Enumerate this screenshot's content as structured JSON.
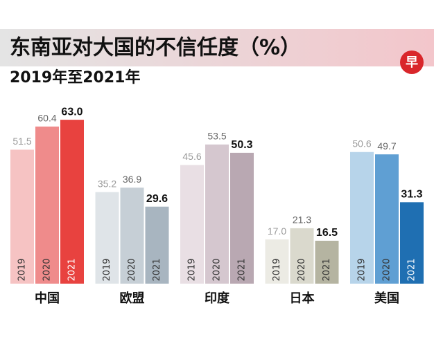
{
  "chart_data": {
    "type": "bar",
    "title": "东南亚对大国的不信任度（%）",
    "subtitle": "2019年至2021年",
    "logo": "早",
    "categories": [
      "中国",
      "欧盟",
      "印度",
      "日本",
      "美国"
    ],
    "series": [
      {
        "name": "2019",
        "values": [
          51.5,
          35.2,
          45.6,
          17.0,
          50.6
        ],
        "value_labels": [
          "51.5",
          "35.2",
          "45.6",
          "17.0",
          "50.6"
        ],
        "colors": [
          "#f6c3c3",
          "#dfe4e8",
          "#e9dfe4",
          "#ecebe4",
          "#b7d4ea"
        ]
      },
      {
        "name": "2020",
        "values": [
          60.4,
          36.9,
          53.5,
          21.3,
          49.7
        ],
        "value_labels": [
          "60.4",
          "36.9",
          "53.5",
          "21.3",
          "49.7"
        ],
        "colors": [
          "#ef8b8b",
          "#c6cfd6",
          "#d5c7cf",
          "#dad9cd",
          "#5f9fd3"
        ]
      },
      {
        "name": "2021",
        "values": [
          63.0,
          29.6,
          50.3,
          16.5,
          31.3
        ],
        "value_labels": [
          "63.0",
          "29.6",
          "50.3",
          "16.5",
          "31.3"
        ],
        "colors": [
          "#e8423f",
          "#a8b5c0",
          "#b9a8b2",
          "#b5b4a1",
          "#1f6fb2"
        ]
      }
    ]
  }
}
